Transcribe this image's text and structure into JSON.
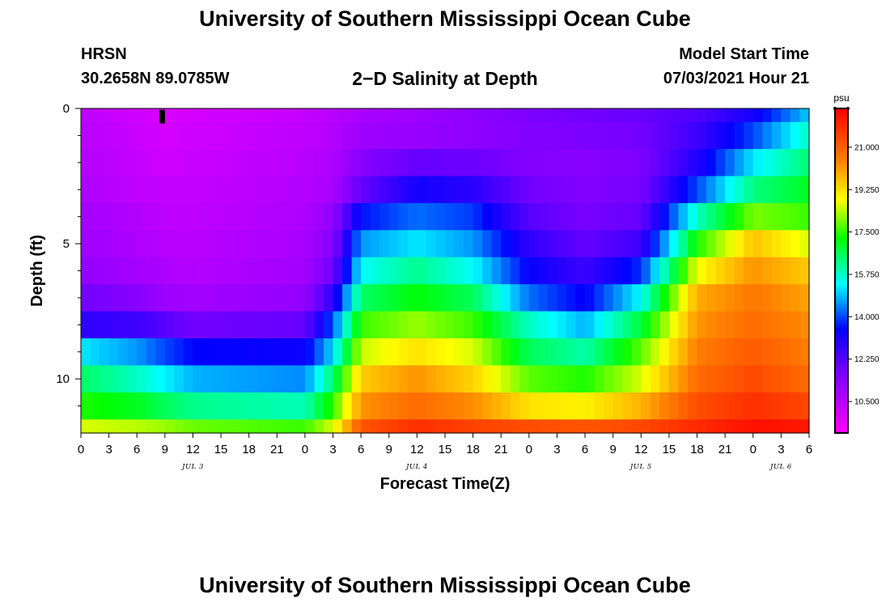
{
  "page": {
    "title_top": "University of Southern Mississippi Ocean Cube",
    "title_bottom": "University of Southern Mississippi Ocean Cube",
    "station": "HRSN",
    "coordinates": "30.2658N  89.0785W",
    "plot_title": "2−D Salinity at Depth",
    "model_start_label": "Model Start Time",
    "model_start_value": "07/03/2021 Hour 21"
  },
  "chart_data": {
    "type": "heatmap",
    "title": "2−D Salinity at Depth",
    "xlabel": "Forecast Time(Z)",
    "ylabel": "Depth (ft)",
    "x_start_hour": 0,
    "x_end_hour": 78,
    "x_tick_labels": [
      "0",
      "3",
      "6",
      "9",
      "12",
      "15",
      "18",
      "21",
      "0",
      "3",
      "6",
      "9",
      "12",
      "15",
      "18",
      "21",
      "0",
      "3",
      "6",
      "9",
      "12",
      "15",
      "18",
      "21",
      "0",
      "3",
      "6"
    ],
    "day_labels": [
      {
        "label": "JUL 3",
        "hour": 12
      },
      {
        "label": "JUL 4",
        "hour": 36
      },
      {
        "label": "JUL 5",
        "hour": 60
      },
      {
        "label": "JUL 6",
        "hour": 75
      }
    ],
    "ylim": [
      0,
      12
    ],
    "y_ticks": [
      0,
      5,
      10
    ],
    "y_minor_ticks": [
      1,
      2,
      3,
      4,
      6,
      7,
      8,
      9,
      11
    ],
    "depth_layer_bounds": [
      0,
      0.5,
      1.5,
      2.5,
      3.5,
      4.5,
      5.5,
      6.5,
      7.5,
      8.5,
      9.5,
      10.5,
      11.5,
      12
    ],
    "depths": [
      0,
      1,
      2,
      3,
      4,
      5,
      6,
      7,
      8,
      9,
      10,
      11,
      12
    ],
    "time_keyframes_hours": [
      0,
      6,
      9,
      12,
      24,
      27,
      30,
      36,
      42,
      48,
      54,
      60,
      66,
      72,
      78
    ],
    "salinity_keyframes": [
      [
        10.4,
        10.1,
        9.9,
        10.0,
        10.3,
        10.5,
        10.8,
        11.0,
        11.3,
        11.6,
        11.8,
        12.0,
        12.3,
        13.2,
        15.0
      ],
      [
        10.5,
        10.2,
        10.0,
        10.1,
        10.4,
        10.6,
        11.0,
        11.1,
        11.3,
        11.5,
        11.6,
        11.8,
        12.6,
        14.0,
        15.8
      ],
      [
        10.6,
        10.3,
        10.1,
        10.2,
        10.5,
        10.7,
        11.4,
        12.0,
        11.9,
        11.5,
        11.4,
        11.6,
        13.0,
        15.2,
        16.4
      ],
      [
        10.7,
        10.4,
        10.3,
        10.3,
        10.6,
        10.8,
        12.0,
        13.2,
        12.9,
        11.8,
        11.5,
        11.7,
        14.0,
        16.3,
        17.0
      ],
      [
        10.9,
        10.6,
        10.4,
        10.4,
        10.7,
        11.2,
        13.6,
        14.3,
        13.9,
        12.2,
        11.7,
        12.0,
        15.8,
        18.0,
        17.6
      ],
      [
        11.0,
        10.7,
        10.5,
        10.5,
        10.8,
        11.5,
        14.6,
        15.2,
        14.6,
        12.8,
        12.0,
        12.6,
        17.4,
        19.6,
        18.6
      ],
      [
        11.2,
        10.9,
        10.7,
        10.6,
        10.9,
        11.8,
        15.4,
        16.2,
        15.4,
        13.4,
        12.6,
        13.8,
        18.8,
        20.2,
        19.5
      ],
      [
        11.8,
        11.4,
        11.0,
        10.9,
        11.2,
        12.8,
        16.5,
        17.2,
        16.6,
        14.3,
        13.4,
        15.4,
        19.9,
        20.6,
        20.0
      ],
      [
        12.8,
        12.6,
        12.2,
        11.8,
        12.0,
        14.1,
        17.6,
        18.2,
        17.6,
        15.8,
        14.8,
        16.8,
        20.2,
        20.8,
        20.3
      ],
      [
        15.2,
        14.6,
        14.0,
        13.5,
        13.3,
        15.1,
        18.5,
        19.2,
        18.6,
        16.6,
        16.0,
        17.8,
        20.5,
        21.1,
        20.5
      ],
      [
        16.5,
        15.8,
        15.3,
        14.8,
        14.5,
        16.4,
        19.5,
        20.2,
        19.4,
        17.8,
        17.4,
        18.6,
        20.8,
        21.4,
        20.8
      ],
      [
        17.4,
        17.0,
        16.6,
        16.2,
        15.9,
        17.5,
        20.2,
        20.8,
        20.3,
        19.2,
        19.0,
        19.8,
        21.3,
        21.8,
        21.4
      ],
      [
        18.6,
        18.4,
        18.2,
        17.9,
        17.6,
        18.6,
        21.2,
        21.8,
        21.5,
        21.3,
        21.2,
        21.4,
        21.9,
        22.3,
        22.2
      ]
    ],
    "colorbar": {
      "unit": "psu",
      "min": 9.2,
      "max": 22.6,
      "tick_values": [
        10.5,
        12.25,
        14.0,
        15.75,
        17.5,
        19.25,
        21.0
      ],
      "tick_labels": [
        "10.500",
        "12.250",
        "14.000",
        "15.750",
        "17.500",
        "19.250",
        "21.000"
      ]
    },
    "marker": {
      "hour": 8.7,
      "depth_from": 0.05,
      "depth_to": 0.55,
      "color": "#000000"
    },
    "grid": false
  }
}
